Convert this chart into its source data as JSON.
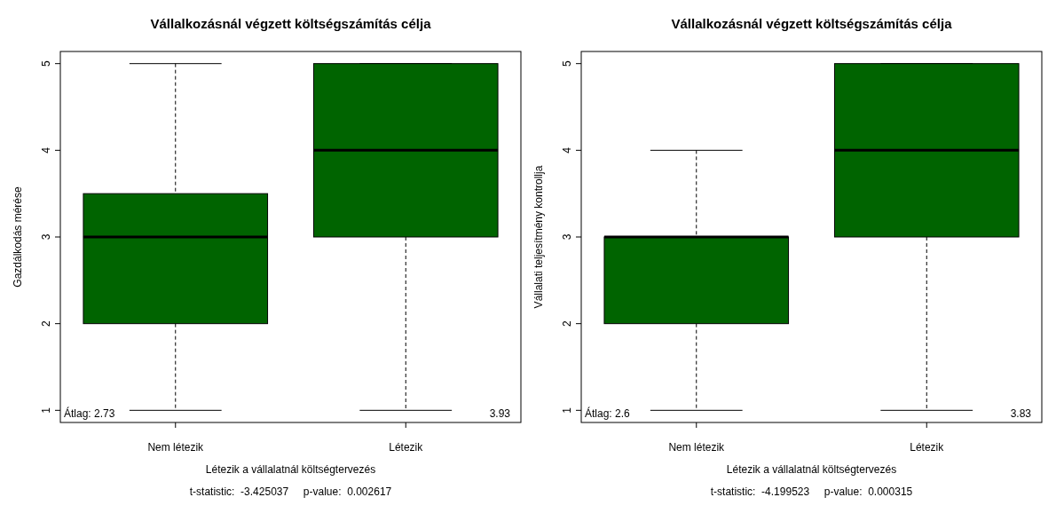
{
  "chart_data": [
    {
      "type": "box",
      "title": "Vállalkozásnál végzett költségszámítás célja",
      "xlabel": "Létezik a vállalatnál költségtervezés",
      "ylabel": "Gazdálkodás mérése",
      "categories": [
        "Nem létezik",
        "Létezik"
      ],
      "color": "#006400",
      "ylim": [
        0.86,
        5.14
      ],
      "yticks": [
        1,
        2,
        3,
        4,
        5
      ],
      "boxes": [
        {
          "low": 1,
          "q1": 2,
          "median": 3,
          "q3": 3.5,
          "high": 5
        },
        {
          "low": 1,
          "q1": 3,
          "median": 4,
          "q3": 5,
          "high": 5
        }
      ],
      "annotations": [
        "Átlag: 2.73",
        "3.93",
        "t-statistic:  -3.425037     p-value:  0.002617"
      ]
    },
    {
      "type": "box",
      "title": "Vállalkozásnál végzett költségszámítás célja",
      "xlabel": "Létezik a vállalatnál költségtervezés",
      "ylabel": "Vállalati teljesítmény kontrollja",
      "categories": [
        "Nem létezik",
        "Létezik"
      ],
      "color": "#006400",
      "ylim": [
        0.86,
        5.14
      ],
      "yticks": [
        1,
        2,
        3,
        4,
        5
      ],
      "boxes": [
        {
          "low": 1,
          "q1": 2,
          "median": 3,
          "q3": 3,
          "high": 4
        },
        {
          "low": 1,
          "q1": 3,
          "median": 4,
          "q3": 5,
          "high": 5
        }
      ],
      "annotations": [
        "Átlag: 2.6",
        "3.83",
        "t-statistic:  -4.199523     p-value:  0.000315"
      ]
    }
  ]
}
